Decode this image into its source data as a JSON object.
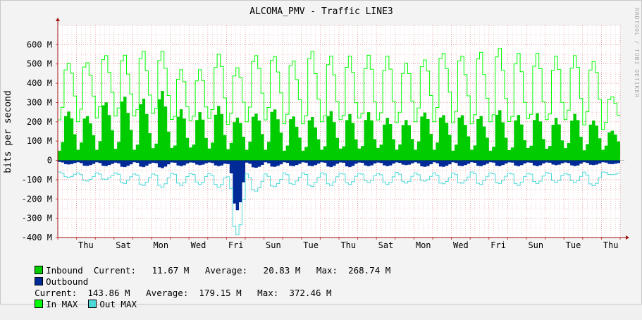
{
  "chart_data": {
    "type": "area",
    "title": "ALCOMA_PMV - Traffic LINE3",
    "ylabel": "bits per second",
    "watermark": "RRDTOOL / TOBI OETIKER",
    "ylim": [
      -400,
      700
    ],
    "ytick_values": [
      -400,
      -300,
      -200,
      -100,
      0,
      100,
      200,
      300,
      400,
      500,
      600
    ],
    "ytick_labels": [
      "-400 M",
      "-300 M",
      "-200 M",
      "-100 M",
      "0",
      "100 M",
      "200 M",
      "300 M",
      "400 M",
      "500 M",
      "600 M"
    ],
    "x_days": 30,
    "x_labels": [
      "Thu",
      "Sat",
      "Mon",
      "Wed",
      "Fri",
      "Sun",
      "Tue",
      "Thu",
      "Sat",
      "Mon",
      "Wed",
      "Fri",
      "Sun",
      "Tue",
      "Thu"
    ],
    "x_label_day_positions": [
      1.5,
      3.5,
      5.5,
      7.5,
      9.5,
      11.5,
      13.5,
      15.5,
      17.5,
      19.5,
      21.5,
      23.5,
      25.5,
      27.5,
      29.5
    ],
    "series": [
      {
        "name": "Inbound",
        "color": "#00cc00",
        "style": "area",
        "daily_peak": [
          265,
          240,
          310,
          330,
          320,
          360,
          265,
          250,
          285,
          230,
          255,
          275,
          230,
          225,
          255,
          240,
          250,
          220,
          215,
          260,
          245,
          240,
          230,
          260,
          235,
          245,
          220,
          245,
          215,
          160
        ],
        "daily_base": [
          50,
          55,
          55,
          60,
          55,
          60,
          55,
          55,
          50,
          55,
          55,
          55,
          50,
          50,
          55,
          55,
          50,
          55,
          50,
          55,
          55,
          50,
          55,
          50,
          50,
          55,
          50,
          55,
          50,
          55
        ]
      },
      {
        "name": "Outbound",
        "color": "#002a97",
        "style": "area",
        "daily_peak": [
          -22,
          -30,
          -30,
          -35,
          -35,
          -40,
          -30,
          -25,
          -30,
          -270,
          -40,
          -35,
          -30,
          -30,
          -35,
          -35,
          -30,
          -30,
          -25,
          -35,
          -35,
          -30,
          -30,
          -30,
          -30,
          -30,
          -25,
          -30,
          -25,
          -20
        ],
        "daily_base": [
          -8,
          -10,
          -10,
          -12,
          -10,
          -12,
          -10,
          -10,
          -10,
          -15,
          -12,
          -10,
          -10,
          -10,
          -10,
          -10,
          -10,
          -10,
          -10,
          -10,
          -10,
          -10,
          -10,
          -10,
          -10,
          -10,
          -10,
          -10,
          -10,
          -10
        ]
      },
      {
        "name": "In MAX",
        "color": "#00ff00",
        "style": "line",
        "daily_peak": [
          520,
          525,
          555,
          545,
          565,
          565,
          470,
          470,
          555,
          495,
          565,
          555,
          520,
          565,
          540,
          540,
          545,
          540,
          515,
          540,
          575,
          550,
          560,
          580,
          555,
          555,
          540,
          550,
          530,
          340
        ],
        "daily_base": [
          210,
          200,
          220,
          230,
          230,
          240,
          200,
          190,
          200,
          180,
          200,
          210,
          190,
          190,
          200,
          200,
          200,
          190,
          185,
          200,
          200,
          195,
          190,
          200,
          195,
          200,
          190,
          195,
          180,
          160
        ]
      },
      {
        "name": "Out MAX",
        "color": "#4dd8d8",
        "style": "line",
        "daily_peak": [
          -90,
          -110,
          -100,
          -120,
          -130,
          -140,
          -130,
          -125,
          -140,
          -400,
          -165,
          -140,
          -125,
          -135,
          -130,
          -125,
          -115,
          -125,
          -120,
          -110,
          -125,
          -120,
          -125,
          -120,
          -130,
          -120,
          -115,
          -115,
          -135,
          -75
        ],
        "daily_base": [
          -60,
          -65,
          -65,
          -65,
          -70,
          -70,
          -65,
          -65,
          -65,
          -80,
          -70,
          -70,
          -65,
          -65,
          -65,
          -65,
          -65,
          -65,
          -60,
          -65,
          -65,
          -65,
          -60,
          -65,
          -65,
          -65,
          -60,
          -65,
          -60,
          -60
        ]
      }
    ]
  },
  "legend": {
    "inbound_label": "Inbound",
    "inbound_stats": "  Current:   11.67 M   Average:   20.83 M   Max:  268.74 M",
    "outbound_label": "Outbound",
    "outbound_stats": "Current:  143.86 M   Average:  179.15 M   Max:  372.46 M",
    "inmax_label": "In MAX",
    "outmax_label": "Out MAX"
  }
}
